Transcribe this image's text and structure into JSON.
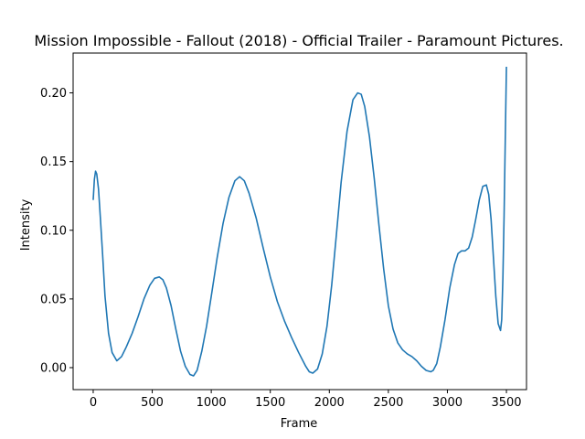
{
  "chart_data": {
    "type": "line",
    "title": "Mission Impossible - Fallout (2018) - Official Trailer - Paramount Pictures.",
    "xlabel": "Frame",
    "ylabel": "Intensity",
    "xlim": [
      -170,
      3670
    ],
    "ylim": [
      -0.016,
      0.229
    ],
    "xticks": [
      0,
      500,
      1000,
      1500,
      2000,
      2500,
      3000,
      3500
    ],
    "xtick_labels": [
      "0",
      "500",
      "1000",
      "1500",
      "2000",
      "2500",
      "3000",
      "3500"
    ],
    "yticks": [
      0.0,
      0.05,
      0.1,
      0.15,
      0.2
    ],
    "ytick_labels": [
      "0.00",
      "0.05",
      "0.10",
      "0.15",
      "0.20"
    ],
    "grid": false,
    "line_color": "#1f77b4",
    "series": [
      {
        "x": [
          0,
          10,
          20,
          30,
          45,
          60,
          80,
          100,
          130,
          160,
          200,
          240,
          280,
          330,
          380,
          430,
          480,
          520,
          560,
          590,
          620,
          660,
          700,
          740,
          780,
          820,
          850,
          880,
          920,
          960,
          1000,
          1050,
          1100,
          1150,
          1200,
          1240,
          1280,
          1320,
          1380,
          1440,
          1500,
          1560,
          1620,
          1680,
          1740,
          1800,
          1830,
          1860,
          1900,
          1940,
          1980,
          2020,
          2060,
          2100,
          2150,
          2200,
          2240,
          2270,
          2300,
          2340,
          2380,
          2420,
          2460,
          2500,
          2540,
          2580,
          2620,
          2660,
          2700,
          2740,
          2780,
          2820,
          2860,
          2880,
          2910,
          2940,
          2980,
          3020,
          3060,
          3090,
          3120,
          3150,
          3180,
          3210,
          3240,
          3270,
          3300,
          3330,
          3350,
          3370,
          3390,
          3410,
          3430,
          3450,
          3460,
          3470,
          3480,
          3490,
          3500
        ],
        "y": [
          0.122,
          0.137,
          0.143,
          0.141,
          0.13,
          0.11,
          0.082,
          0.052,
          0.025,
          0.011,
          0.005,
          0.008,
          0.015,
          0.025,
          0.037,
          0.05,
          0.06,
          0.065,
          0.066,
          0.064,
          0.058,
          0.045,
          0.028,
          0.012,
          0.001,
          -0.005,
          -0.006,
          -0.002,
          0.012,
          0.03,
          0.052,
          0.08,
          0.105,
          0.124,
          0.136,
          0.139,
          0.136,
          0.127,
          0.109,
          0.087,
          0.066,
          0.048,
          0.034,
          0.022,
          0.011,
          0.001,
          -0.003,
          -0.004,
          -0.001,
          0.01,
          0.03,
          0.06,
          0.097,
          0.135,
          0.172,
          0.195,
          0.2,
          0.199,
          0.19,
          0.168,
          0.138,
          0.104,
          0.072,
          0.045,
          0.028,
          0.018,
          0.013,
          0.01,
          0.008,
          0.005,
          0.001,
          -0.002,
          -0.003,
          -0.002,
          0.003,
          0.015,
          0.035,
          0.058,
          0.075,
          0.083,
          0.085,
          0.085,
          0.087,
          0.095,
          0.108,
          0.122,
          0.132,
          0.133,
          0.126,
          0.108,
          0.08,
          0.052,
          0.032,
          0.027,
          0.035,
          0.065,
          0.11,
          0.165,
          0.219
        ]
      }
    ]
  }
}
